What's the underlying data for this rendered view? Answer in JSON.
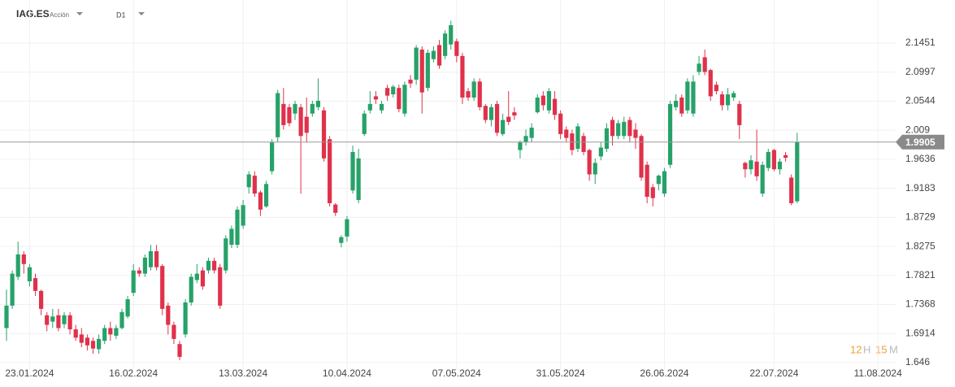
{
  "header": {
    "symbol": "IAG.ES",
    "kind": "Acción",
    "timeframe": "D1"
  },
  "timer": {
    "hours": "12",
    "hours_unit": "H",
    "minutes": "15",
    "minutes_unit": "M"
  },
  "chart_data": {
    "type": "candlestick",
    "up_color": "#26a269",
    "down_color": "#e0314b",
    "current_price": 1.9905,
    "ylim": [
      1.6346,
      2.2124
    ],
    "yticks": [
      1.646,
      1.6914,
      1.7368,
      1.7821,
      1.8275,
      1.8729,
      1.9183,
      1.9636,
      2.009,
      2.0544,
      2.0997,
      2.1451
    ],
    "xlim": [
      -1,
      160
    ],
    "xticks": [
      {
        "value": 4,
        "label": "23.01.2024"
      },
      {
        "value": 22,
        "label": "16.02.2024"
      },
      {
        "value": 41,
        "label": "13.03.2024"
      },
      {
        "value": 59,
        "label": "10.04.2024"
      },
      {
        "value": 78,
        "label": "07.05.2024"
      },
      {
        "value": 96,
        "label": "31.05.2024"
      },
      {
        "value": 114,
        "label": "26.06.2024"
      },
      {
        "value": 133,
        "label": "22.07.2024"
      },
      {
        "value": 151,
        "label": "11.08.2024"
      }
    ],
    "grid": true,
    "open": [
      1.7,
      1.735,
      1.78,
      1.815,
      1.773,
      1.778,
      1.758,
      1.72,
      1.71,
      1.72,
      1.706,
      1.72,
      1.698,
      1.69,
      1.685,
      1.68,
      1.667,
      1.68,
      1.7,
      1.688,
      1.7,
      1.718,
      1.755,
      1.79,
      1.785,
      1.795,
      1.82,
      1.797,
      1.735,
      1.705,
      1.675,
      1.69,
      1.74,
      1.775,
      1.79,
      1.79,
      1.805,
      1.795,
      1.79,
      1.83,
      1.83,
      1.86,
      1.92,
      1.938,
      1.912,
      1.89,
      1.945,
      1.998,
      2.05,
      2.045,
      2.035,
      2.045,
      2.03,
      2.035,
      2.045,
      2.04,
      1.995,
      1.893,
      1.833,
      1.843,
      1.915,
      1.9,
      2.003,
      2.04,
      2.062,
      2.04,
      2.075,
      2.065,
      2.075,
      2.035,
      2.088,
      2.088,
      2.135,
      2.075,
      2.12,
      2.142,
      2.125,
      2.143,
      2.148,
      2.125,
      2.07,
      2.06,
      2.085,
      2.047,
      2.025,
      2.05,
      2.003,
      2.03,
      2.037,
      1.978,
      1.99,
      1.997,
      2.037,
      2.063,
      2.04,
      2.058,
      2.035,
      2.01,
      2.004,
      1.98,
      2.0,
      1.978,
      1.94,
      1.968,
      1.98,
      2.025,
      2.0,
      2.0,
      2.025,
      2.01,
      2.0,
      1.955,
      1.92,
      1.925,
      1.91,
      1.955,
      2.045,
      2.06,
      2.04,
      2.035,
      2.1,
      2.123,
      2.103,
      2.08,
      2.065,
      2.048,
      2.06,
      2.05,
      1.958,
      1.948,
      1.96,
      1.91,
      1.95,
      1.978,
      1.948,
      1.97,
      1.935,
      1.898
    ],
    "high": [
      1.76,
      1.79,
      1.835,
      1.82,
      1.8,
      1.785,
      1.76,
      1.725,
      1.73,
      1.73,
      1.725,
      1.725,
      1.705,
      1.7,
      1.69,
      1.685,
      1.69,
      1.705,
      1.71,
      1.705,
      1.73,
      1.75,
      1.8,
      1.795,
      1.815,
      1.83,
      1.83,
      1.8,
      1.74,
      1.71,
      1.68,
      1.745,
      1.785,
      1.8,
      1.795,
      1.81,
      1.81,
      1.8,
      1.845,
      1.86,
      1.89,
      1.9,
      1.945,
      1.945,
      1.915,
      1.93,
      1.995,
      2.072,
      2.075,
      2.05,
      2.055,
      2.05,
      2.06,
      2.055,
      2.09,
      2.045,
      2.0,
      1.895,
      1.845,
      1.875,
      1.985,
      1.98,
      2.04,
      2.07,
      2.07,
      2.055,
      2.08,
      2.08,
      2.08,
      2.085,
      2.095,
      2.142,
      2.14,
      2.135,
      2.14,
      2.15,
      2.165,
      2.18,
      2.152,
      2.13,
      2.075,
      2.09,
      2.09,
      2.05,
      2.05,
      2.055,
      2.035,
      2.07,
      2.045,
      1.993,
      2.01,
      2.02,
      2.065,
      2.07,
      2.075,
      2.07,
      2.04,
      2.015,
      2.01,
      2.02,
      2.005,
      1.98,
      1.965,
      1.99,
      2.02,
      2.03,
      2.025,
      2.03,
      2.03,
      2.02,
      2.003,
      1.96,
      1.925,
      1.94,
      1.95,
      2.055,
      2.065,
      2.065,
      2.09,
      2.095,
      2.125,
      2.135,
      2.105,
      2.085,
      2.07,
      2.075,
      2.07,
      2.055,
      1.96,
      1.97,
      2.01,
      1.96,
      1.98,
      1.98,
      1.965,
      1.975,
      1.94,
      2.005
    ],
    "low": [
      1.68,
      1.73,
      1.775,
      1.785,
      1.765,
      1.75,
      1.72,
      1.695,
      1.7,
      1.695,
      1.7,
      1.69,
      1.68,
      1.67,
      1.665,
      1.66,
      1.66,
      1.675,
      1.68,
      1.683,
      1.698,
      1.715,
      1.75,
      1.78,
      1.78,
      1.79,
      1.79,
      1.72,
      1.69,
      1.675,
      1.65,
      1.685,
      1.735,
      1.77,
      1.76,
      1.785,
      1.785,
      1.73,
      1.785,
      1.825,
      1.825,
      1.855,
      1.91,
      1.905,
      1.875,
      1.888,
      1.94,
      1.99,
      2.01,
      2.015,
      2.025,
      1.91,
      1.99,
      2.03,
      2.04,
      1.96,
      1.89,
      1.875,
      1.826,
      1.835,
      1.91,
      1.895,
      2.0,
      2.035,
      2.05,
      2.035,
      2.055,
      2.06,
      2.037,
      2.03,
      2.075,
      2.08,
      2.035,
      2.07,
      2.115,
      2.105,
      2.12,
      2.135,
      2.115,
      2.05,
      2.055,
      2.055,
      2.04,
      2.02,
      2.015,
      2.0,
      2.0,
      2.017,
      2.025,
      1.965,
      1.985,
      1.99,
      2.035,
      2.04,
      2.035,
      2.025,
      1.995,
      1.99,
      1.97,
      1.975,
      1.97,
      1.93,
      1.925,
      1.962,
      1.975,
      1.985,
      1.995,
      1.995,
      1.99,
      1.98,
      1.93,
      1.895,
      1.89,
      1.915,
      1.905,
      1.95,
      2.04,
      2.03,
      2.035,
      2.03,
      2.095,
      2.095,
      2.055,
      2.065,
      2.04,
      2.04,
      2.055,
      1.995,
      1.935,
      1.94,
      1.93,
      1.905,
      1.945,
      1.945,
      1.94,
      1.96,
      1.892,
      1.895
    ],
    "close": [
      1.735,
      1.785,
      1.815,
      1.8,
      1.795,
      1.758,
      1.73,
      1.705,
      1.718,
      1.7,
      1.72,
      1.698,
      1.685,
      1.677,
      1.673,
      1.668,
      1.683,
      1.7,
      1.69,
      1.7,
      1.725,
      1.745,
      1.79,
      1.785,
      1.81,
      1.82,
      1.795,
      1.73,
      1.705,
      1.683,
      1.655,
      1.74,
      1.78,
      1.785,
      1.765,
      1.805,
      1.79,
      1.735,
      1.84,
      1.855,
      1.885,
      1.892,
      1.94,
      1.91,
      1.885,
      1.925,
      1.99,
      2.067,
      2.017,
      2.02,
      2.05,
      2.0,
      2.005,
      2.05,
      2.055,
      1.965,
      1.895,
      1.88,
      1.842,
      1.87,
      1.975,
      1.965,
      2.035,
      2.05,
      2.057,
      2.05,
      2.063,
      2.077,
      2.042,
      2.08,
      2.082,
      2.138,
      2.068,
      2.13,
      2.133,
      2.11,
      2.16,
      2.173,
      2.125,
      2.06,
      2.06,
      2.085,
      2.045,
      2.025,
      2.045,
      2.005,
      2.025,
      2.022,
      2.032,
      1.99,
      2.0,
      2.013,
      2.06,
      2.048,
      2.07,
      2.033,
      2.003,
      1.997,
      1.978,
      2.015,
      1.975,
      1.94,
      1.958,
      1.982,
      2.012,
      2.0,
      2.02,
      2.022,
      2.0,
      1.997,
      1.935,
      1.905,
      1.903,
      1.938,
      1.945,
      2.05,
      2.055,
      2.035,
      2.085,
      2.085,
      2.113,
      2.1,
      2.062,
      2.07,
      2.048,
      2.065,
      2.067,
      2.017,
      1.948,
      1.962,
      1.937,
      1.955,
      1.975,
      1.948,
      1.96,
      1.966,
      1.895,
      1.9905
    ]
  }
}
